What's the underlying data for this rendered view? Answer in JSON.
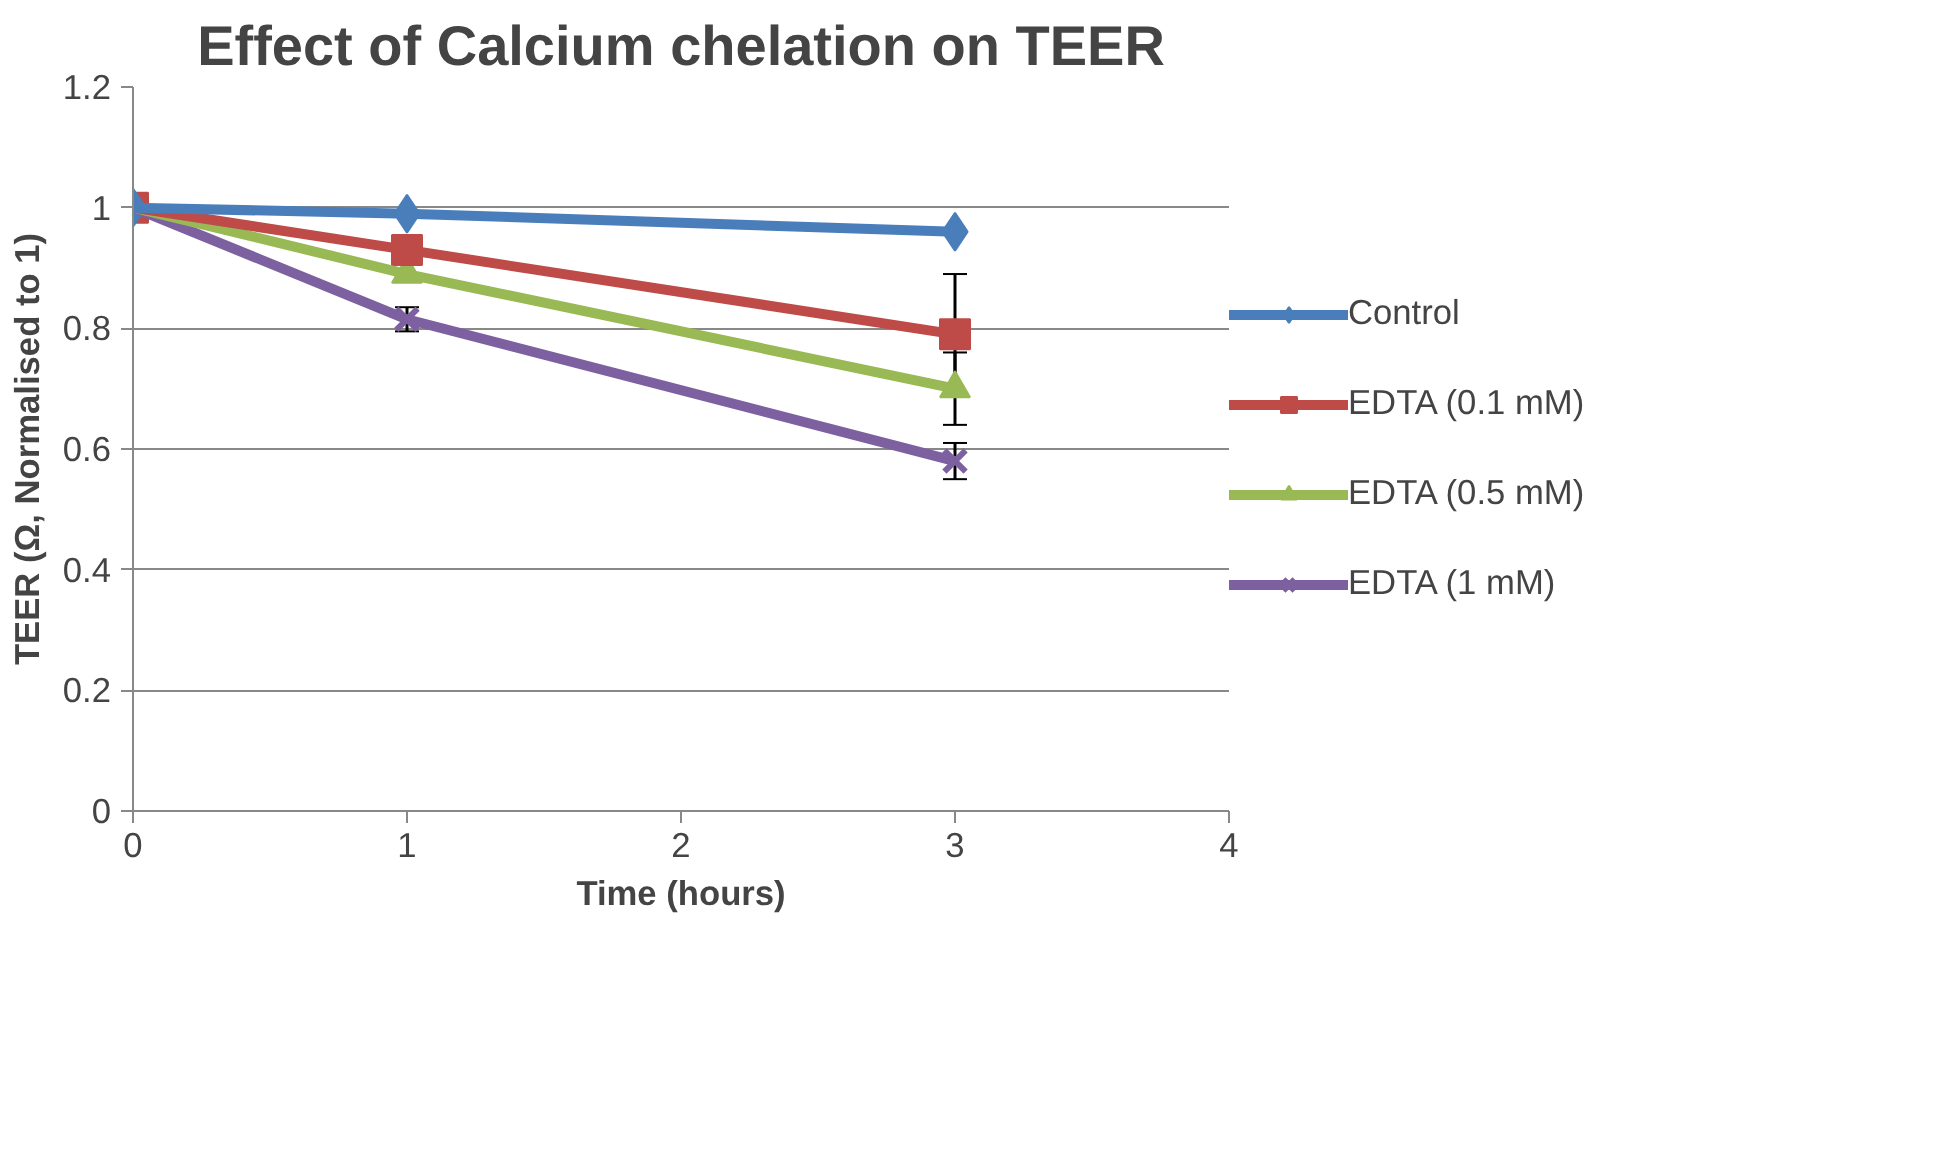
{
  "chart_data": {
    "type": "line",
    "title": "Effect of Calcium chelation on TEER",
    "xlabel": "Time (hours)",
    "ylabel": "TEER (Ω, Normalised to 1)",
    "xlim": [
      0,
      4
    ],
    "xticks": [
      0,
      1,
      2,
      3,
      4
    ],
    "ylim": [
      0,
      1.2
    ],
    "yticks": [
      0,
      0.2,
      0.4,
      0.6,
      0.8,
      1,
      1.2
    ],
    "grid": "y",
    "legend": "right",
    "series": [
      {
        "name": "Control",
        "color": "#4a7ebb",
        "x": [
          0,
          1,
          3
        ],
        "values": [
          1,
          0.99,
          0.96
        ],
        "marker": "diamond"
      },
      {
        "name": "EDTA (0.1 mM)",
        "color": "#be4b48",
        "x": [
          0,
          1,
          3
        ],
        "values": [
          1,
          0.93,
          0.79
        ],
        "marker": "square",
        "errors": [
          null,
          null,
          0.1
        ]
      },
      {
        "name": "EDTA (0.5 mM)",
        "color": "#98b954",
        "x": [
          0,
          1,
          3
        ],
        "values": [
          1,
          0.89,
          0.7
        ],
        "marker": "triangle",
        "errors": [
          null,
          null,
          0.06
        ]
      },
      {
        "name": "EDTA (1 mM)",
        "color": "#7d60a0",
        "x": [
          0,
          1,
          3
        ],
        "values": [
          1,
          0.815,
          0.58
        ],
        "marker": "cross",
        "errors": [
          null,
          0.02,
          0.03
        ]
      }
    ]
  }
}
